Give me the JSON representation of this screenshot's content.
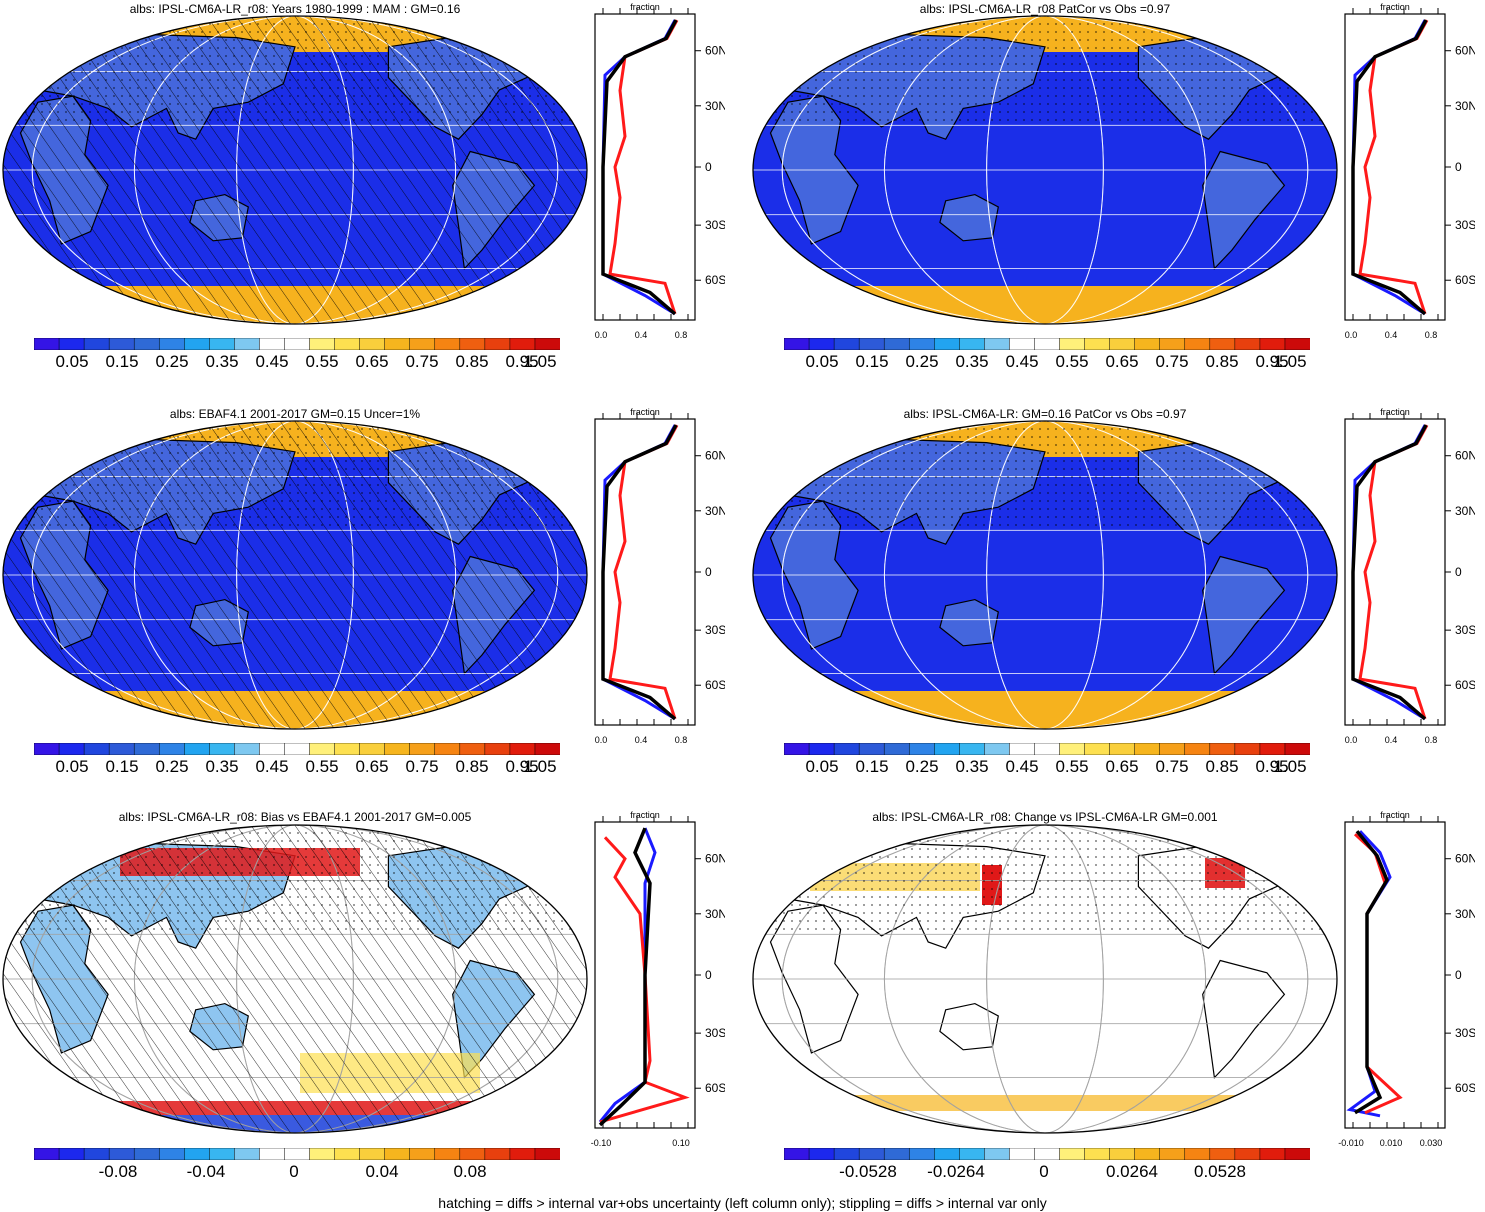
{
  "footer": "hatching = diffs > internal var+obs uncertainty (left column only); stippling = diffs > internal var only",
  "colors": {
    "ocean_blue": "#1b2ee8",
    "land_blue": "#4466dd",
    "ice_orange": "#f6b21e",
    "bias_red": "#e01818",
    "profile_red": "#ff1a1a",
    "profile_blue": "#1a1aff",
    "profile_black": "#000000"
  },
  "abs_colorbar": {
    "colors": [
      "#3414e6",
      "#1c28ee",
      "#2046de",
      "#2d5ad8",
      "#2f6ad6",
      "#2e83e6",
      "#22a4f0",
      "#38b6f0",
      "#7ec8f0",
      "#ffffff",
      "#ffffff",
      "#fff07a",
      "#fde050",
      "#f9cf3c",
      "#f6b51e",
      "#f6a01a",
      "#f68412",
      "#ef5f10",
      "#e8400e",
      "#e11c0c",
      "#cc0a0a"
    ],
    "labels": [
      "0.05",
      "0.15",
      "0.25",
      "0.35",
      "0.45",
      "0.55",
      "0.65",
      "0.75",
      "0.85",
      "0.95",
      "1.05"
    ]
  },
  "bias_colorbar": {
    "colors": [
      "#3414e6",
      "#1c28ee",
      "#2046de",
      "#2d5ad8",
      "#2f6ad6",
      "#2e83e6",
      "#22a4f0",
      "#38b6f0",
      "#7ec8f0",
      "#ffffff",
      "#ffffff",
      "#fff07a",
      "#fde050",
      "#f9cf3c",
      "#f6b51e",
      "#f6a01a",
      "#f68412",
      "#ef5f10",
      "#e8400e",
      "#e11c0c",
      "#cc0a0a"
    ],
    "labels": [
      "-0.08",
      "-0.04",
      "0",
      "0.04",
      "0.08"
    ]
  },
  "change_colorbar": {
    "colors": [
      "#3414e6",
      "#1c28ee",
      "#2046de",
      "#2d5ad8",
      "#2f6ad6",
      "#2e83e6",
      "#22a4f0",
      "#38b6f0",
      "#7ec8f0",
      "#ffffff",
      "#ffffff",
      "#fff07a",
      "#fde050",
      "#f9cf3c",
      "#f6b51e",
      "#f6a01a",
      "#f68412",
      "#ef5f10",
      "#e8400e",
      "#e11c0c",
      "#cc0a0a"
    ],
    "labels": [
      "-0.0528",
      "-0.0264",
      "0",
      "0.0264",
      "0.0528"
    ]
  },
  "lat_ticks": [
    "60N",
    "30N",
    "0",
    "30S",
    "60S"
  ],
  "profile_header": "fraction",
  "panels": [
    {
      "id": "p1",
      "title": "albs: IPSL-CM6A-LR_r08: Years 1980-1999 : MAM : GM=0.16",
      "kind": "abs",
      "hatch": true,
      "xticks": [
        "0.0",
        "0.4",
        "0.8"
      ]
    },
    {
      "id": "p2",
      "title": "albs: IPSL-CM6A-LR_r08 PatCor vs Obs =0.97",
      "kind": "abs",
      "hatch": false,
      "xticks": [
        "0.0",
        "0.4",
        "0.8"
      ]
    },
    {
      "id": "p3",
      "title": "albs: EBAF4.1 2001-2017 GM=0.15 Uncer=1%",
      "kind": "abs",
      "hatch": true,
      "xticks": [
        "0.0",
        "0.4",
        "0.8"
      ]
    },
    {
      "id": "p4",
      "title": "albs: IPSL-CM6A-LR: GM=0.16 PatCor vs Obs =0.97",
      "kind": "abs",
      "hatch": false,
      "xticks": [
        "0.0",
        "0.4",
        "0.8"
      ]
    },
    {
      "id": "p5",
      "title": "albs: IPSL-CM6A-LR_r08: Bias vs EBAF4.1 2001-2017 GM=0.005",
      "kind": "bias",
      "hatch": true,
      "xticks": [
        "-0.10",
        "0.10"
      ]
    },
    {
      "id": "p6",
      "title": "albs: IPSL-CM6A-LR_r08: Change vs IPSL-CM6A-LR GM=0.001",
      "kind": "change",
      "hatch": false,
      "xticks": [
        "-0.010",
        "0.010",
        "0.030"
      ]
    }
  ]
}
